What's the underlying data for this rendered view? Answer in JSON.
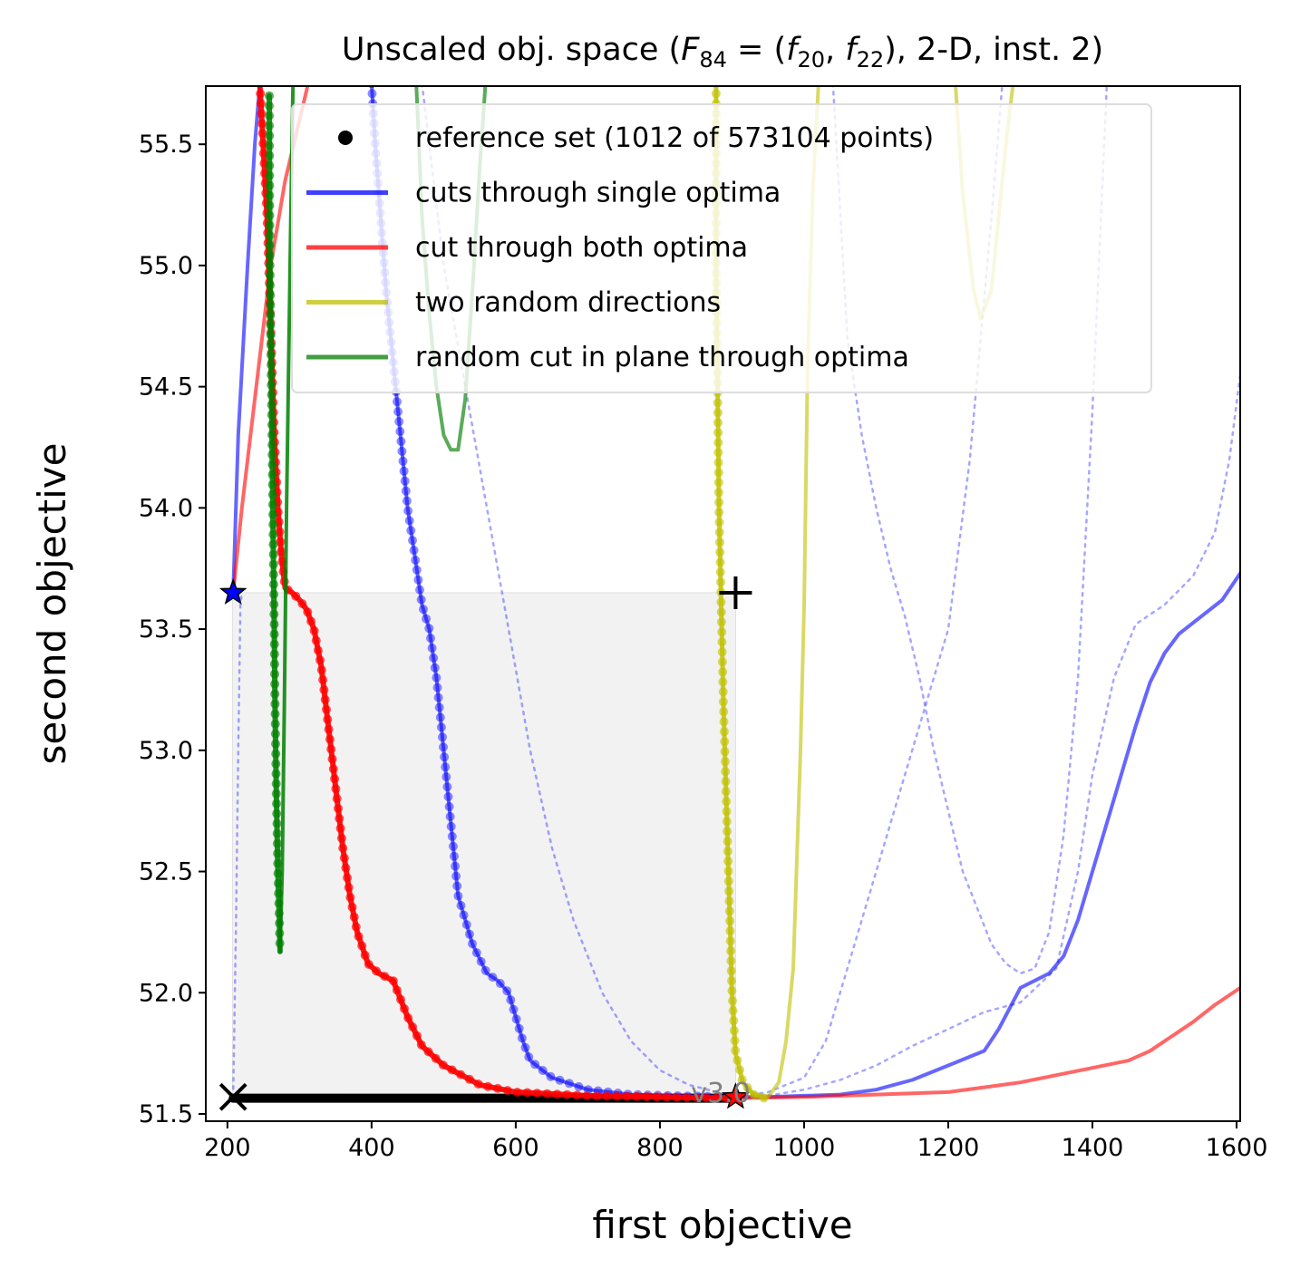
{
  "chart_data": {
    "type": "line",
    "title": "Unscaled obj. space ($F_{84} = (f_{20}, f_{22})$, 2-D, inst. 2)",
    "title_parts": {
      "pre": "Unscaled obj. space (",
      "F": "F",
      "F_sub": "84",
      "eq": " = (",
      "f1": "f",
      "f1_sub": "20",
      "comma": ", ",
      "f2": "f",
      "f2_sub": "22",
      "post": "), 2-D, inst. 2)"
    },
    "xlabel": "first objective",
    "ylabel": "second objective",
    "xlim": [
      170,
      1605
    ],
    "ylim": [
      51.47,
      55.74
    ],
    "xticks": [
      200,
      400,
      600,
      800,
      1000,
      1200,
      1400,
      1600
    ],
    "xtick_labels": [
      "200",
      "400",
      "600",
      "800",
      "1000",
      "1200",
      "1400",
      "1600"
    ],
    "yticks": [
      51.5,
      52.0,
      52.5,
      53.0,
      53.5,
      54.0,
      54.5,
      55.0,
      55.5
    ],
    "ytick_labels": [
      "51.5",
      "52.0",
      "52.5",
      "53.0",
      "53.5",
      "54.0",
      "54.5",
      "55.0",
      "55.5"
    ],
    "grid": false,
    "legend_position": "top-right",
    "legend": [
      {
        "label": "reference set (1012 of 573104 points)",
        "color": "#000000",
        "style": "dot"
      },
      {
        "label": "cuts through single optima",
        "color": "#0000ff",
        "style": "line"
      },
      {
        "label": "cut through both optima",
        "color": "#ff0000",
        "style": "line"
      },
      {
        "label": "two random directions",
        "color": "#bfbf00",
        "style": "line"
      },
      {
        "label": "random cut in plane through optima",
        "color": "#008000",
        "style": "line"
      }
    ],
    "colors": {
      "blue": "#0000ff",
      "red": "#ff0000",
      "yellow": "#bfbf00",
      "green": "#008000",
      "black": "#000000",
      "gray_box": "#f2f2f2"
    },
    "version_label": "v3.0",
    "dominated_region": {
      "x": [
        207,
        905
      ],
      "y": [
        51.56,
        53.65
      ]
    },
    "markers": [
      {
        "name": "optimum-1-star",
        "x": 208,
        "y": 53.65,
        "color": "#0000ff",
        "symbol": "star"
      },
      {
        "name": "optimum-2-star",
        "x": 905,
        "y": 51.57,
        "color": "#ff0000",
        "symbol": "star"
      },
      {
        "name": "ideal-point-cross",
        "x": 208,
        "y": 51.57,
        "symbol": "x"
      },
      {
        "name": "nadir-point-plus",
        "x": 905,
        "y": 53.65,
        "symbol": "plus"
      }
    ],
    "series": [
      {
        "name": "reference set",
        "color": "#000000",
        "width": 10,
        "opacity": 1,
        "x": [
          208,
          905
        ],
        "y": [
          51.565,
          51.565
        ]
      },
      {
        "color": "#0000ff",
        "width": 4,
        "opacity": 0.6,
        "markers": true,
        "x": [
          400,
          405,
          420,
          430,
          440,
          450,
          460,
          470,
          480,
          490,
          500,
          510,
          520,
          540,
          560,
          575,
          590,
          600,
          610,
          620,
          650,
          700,
          760,
          820,
          905
        ],
        "y": [
          55.75,
          55.5,
          54.9,
          54.6,
          54.3,
          54.0,
          53.8,
          53.6,
          53.5,
          53.3,
          53.0,
          52.7,
          52.4,
          52.2,
          52.08,
          52.05,
          52.0,
          51.9,
          51.8,
          51.72,
          51.65,
          51.6,
          51.58,
          51.575,
          51.57
        ]
      },
      {
        "color": "#0000ff",
        "width": 4,
        "opacity": 0.6,
        "x": [
          905,
          950,
          1000,
          1050,
          1100,
          1150,
          1200,
          1250,
          1270,
          1300,
          1340,
          1360,
          1380,
          1400,
          1430,
          1460,
          1480,
          1500,
          1520,
          1550,
          1580,
          1605
        ],
        "y": [
          51.57,
          51.57,
          51.575,
          51.58,
          51.6,
          51.64,
          51.7,
          51.76,
          51.85,
          52.02,
          52.08,
          52.15,
          52.3,
          52.5,
          52.8,
          53.1,
          53.28,
          53.4,
          53.48,
          53.55,
          53.62,
          53.73
        ]
      },
      {
        "color": "#0000ff",
        "width": 4,
        "opacity": 0.6,
        "x": [
          208,
          215,
          228,
          238,
          245
        ],
        "y": [
          53.65,
          54.3,
          55.0,
          55.5,
          55.75
        ]
      },
      {
        "color": "#0000ff",
        "width": 2.5,
        "opacity": 0.35,
        "dash": "3,6",
        "x": [
          208,
          212,
          215,
          218,
          220
        ],
        "y": [
          51.57,
          52.3,
          53.0,
          53.6,
          53.65
        ]
      },
      {
        "color": "#0000ff",
        "width": 2.5,
        "opacity": 0.35,
        "dash": "3,6",
        "x": [
          470,
          500,
          530,
          560,
          590,
          620,
          650,
          680,
          720,
          760,
          800,
          840,
          880,
          905
        ],
        "y": [
          55.75,
          55.0,
          54.5,
          54.0,
          53.5,
          53.0,
          52.6,
          52.3,
          52.0,
          51.8,
          51.68,
          51.62,
          51.59,
          51.57
        ]
      },
      {
        "color": "#0000ff",
        "width": 2.5,
        "opacity": 0.35,
        "dash": "3,6",
        "x": [
          905,
          950,
          1000,
          1030,
          1060,
          1100,
          1150,
          1200,
          1230,
          1260,
          1275
        ],
        "y": [
          51.57,
          51.59,
          51.65,
          51.8,
          52.1,
          52.5,
          53.0,
          53.5,
          54.2,
          55.2,
          55.75
        ]
      },
      {
        "color": "#0000ff",
        "width": 2.5,
        "opacity": 0.35,
        "dash": "3,6",
        "x": [
          905,
          960,
          1000,
          1050,
          1100,
          1150,
          1200,
          1250,
          1300,
          1350,
          1380,
          1400,
          1430,
          1460,
          1500,
          1540,
          1570,
          1590,
          1605
        ],
        "y": [
          51.57,
          51.58,
          51.6,
          51.64,
          51.7,
          51.78,
          51.85,
          51.92,
          51.96,
          52.1,
          52.5,
          52.9,
          53.3,
          53.52,
          53.6,
          53.72,
          53.9,
          54.2,
          54.55
        ]
      },
      {
        "color": "#0000ff",
        "width": 2.5,
        "opacity": 0.35,
        "dash": "3,6",
        "x": [
          1040,
          1060,
          1080,
          1100,
          1120,
          1140,
          1160,
          1180,
          1200,
          1220,
          1240,
          1260,
          1280,
          1300,
          1320,
          1340,
          1360,
          1380,
          1400,
          1420
        ],
        "y": [
          55.75,
          54.7,
          54.3,
          54.0,
          53.75,
          53.55,
          53.3,
          53.0,
          52.75,
          52.5,
          52.35,
          52.2,
          52.12,
          52.08,
          52.1,
          52.25,
          52.65,
          53.3,
          54.4,
          55.75
        ]
      },
      {
        "color": "#ff0000",
        "width": 4,
        "opacity": 0.6,
        "x": [
          208,
          220,
          240,
          260,
          280,
          300,
          312
        ],
        "y": [
          53.65,
          54.0,
          54.5,
          55.0,
          55.35,
          55.6,
          55.75
        ]
      },
      {
        "color": "#ff0000",
        "width": 6,
        "opacity": 0.9,
        "markers": true,
        "x": [
          245,
          255,
          265,
          270,
          275,
          280,
          290,
          300,
          310,
          320,
          330,
          340,
          350,
          360,
          370,
          380,
          395,
          410,
          430,
          450,
          470,
          500,
          550,
          600,
          700,
          800,
          905
        ],
        "y": [
          55.75,
          55.2,
          54.3,
          54.0,
          53.8,
          53.67,
          53.65,
          53.62,
          53.58,
          53.5,
          53.35,
          53.1,
          52.85,
          52.6,
          52.4,
          52.25,
          52.12,
          52.08,
          52.05,
          51.9,
          51.78,
          51.7,
          51.62,
          51.59,
          51.575,
          51.57,
          51.565
        ]
      },
      {
        "color": "#ff0000",
        "width": 4,
        "opacity": 0.6,
        "x": [
          905,
          1000,
          1100,
          1200,
          1250,
          1300,
          1350,
          1400,
          1450,
          1480,
          1510,
          1540,
          1570,
          1605
        ],
        "y": [
          51.565,
          51.57,
          51.58,
          51.59,
          51.61,
          51.63,
          51.66,
          51.69,
          51.72,
          51.76,
          51.82,
          51.88,
          51.95,
          52.02
        ]
      },
      {
        "color": "#bfbf00",
        "width": 5,
        "opacity": 0.8,
        "markers": true,
        "x": [
          878,
          878,
          880,
          882,
          885,
          888,
          892,
          896,
          900,
          905,
          915,
          930,
          945
        ],
        "y": [
          55.75,
          55.0,
          54.5,
          54.0,
          53.6,
          53.2,
          52.8,
          52.4,
          52.0,
          51.75,
          51.63,
          51.58,
          51.565
        ]
      },
      {
        "color": "#bfbf00",
        "width": 4,
        "opacity": 0.6,
        "x": [
          920,
          935,
          950,
          965,
          975,
          985,
          995,
          1000,
          1005,
          1012,
          1020
        ],
        "y": [
          51.6,
          51.58,
          51.57,
          51.63,
          51.8,
          52.1,
          53.0,
          53.6,
          54.6,
          55.3,
          55.75
        ]
      },
      {
        "color": "#bfbf00",
        "width": 4,
        "opacity": 0.6,
        "x": [
          1210,
          1220,
          1235,
          1245,
          1260,
          1270,
          1280,
          1290
        ],
        "y": [
          55.75,
          55.3,
          54.9,
          54.78,
          54.9,
          55.2,
          55.5,
          55.75
        ]
      },
      {
        "color": "#008000",
        "width": 6,
        "opacity": 0.85,
        "markers": true,
        "x": [
          258,
          259,
          261,
          263,
          265,
          266,
          268,
          270,
          272,
          273
        ],
        "y": [
          55.7,
          55.0,
          54.5,
          54.0,
          53.5,
          53.2,
          52.8,
          52.5,
          52.3,
          52.17
        ]
      },
      {
        "color": "#008000",
        "width": 4,
        "opacity": 0.85,
        "x": [
          273,
          276,
          279,
          282,
          285,
          288,
          291
        ],
        "y": [
          52.17,
          52.5,
          53.2,
          54.0,
          54.6,
          55.2,
          55.75
        ]
      },
      {
        "color": "#008000",
        "width": 4,
        "opacity": 0.65,
        "x": [
          462,
          470,
          480,
          490,
          500,
          510,
          520,
          530,
          540,
          550,
          558
        ],
        "y": [
          55.75,
          55.2,
          54.8,
          54.5,
          54.3,
          54.24,
          54.24,
          54.45,
          54.9,
          55.4,
          55.75
        ]
      }
    ]
  }
}
